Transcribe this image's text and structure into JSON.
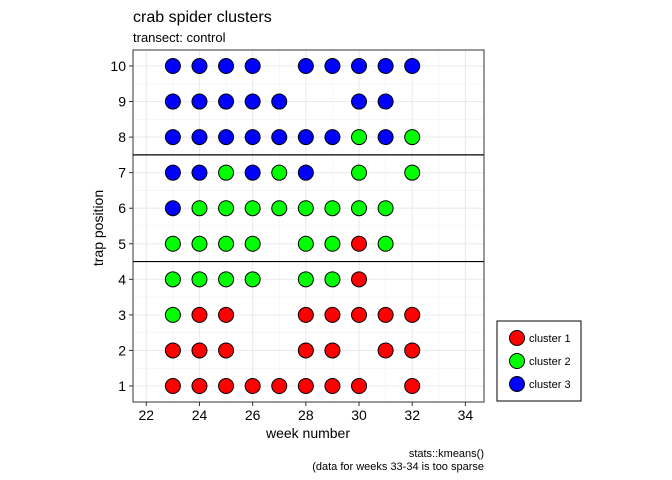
{
  "chart_data": {
    "type": "scatter",
    "title": "crab spider clusters",
    "subtitle": "transect: control",
    "xlabel": "week number",
    "ylabel": "trap position",
    "xlim": [
      21.5,
      34.7
    ],
    "ylim": [
      0.55,
      10.45
    ],
    "xticks": [
      22,
      24,
      26,
      28,
      30,
      32,
      34
    ],
    "yticks": [
      1,
      2,
      3,
      4,
      5,
      6,
      7,
      8,
      9,
      10
    ],
    "grid": true,
    "hlines": [
      4.5,
      7.5
    ],
    "legend_position": "bottom-right",
    "caption_lines": [
      "stats::kmeans()",
      "(data for weeks 33-34 is too sparse"
    ],
    "series": [
      {
        "name": "cluster 1",
        "color": "#ff0000",
        "points": [
          [
            23,
            1
          ],
          [
            24,
            1
          ],
          [
            25,
            1
          ],
          [
            26,
            1
          ],
          [
            27,
            1
          ],
          [
            28,
            1
          ],
          [
            29,
            1
          ],
          [
            30,
            1
          ],
          [
            32,
            1
          ],
          [
            23,
            2
          ],
          [
            24,
            2
          ],
          [
            25,
            2
          ],
          [
            28,
            2
          ],
          [
            29,
            2
          ],
          [
            31,
            2
          ],
          [
            32,
            2
          ],
          [
            24,
            3
          ],
          [
            25,
            3
          ],
          [
            28,
            3
          ],
          [
            29,
            3
          ],
          [
            30,
            3
          ],
          [
            31,
            3
          ],
          [
            32,
            3
          ],
          [
            30,
            4
          ],
          [
            30,
            5
          ]
        ]
      },
      {
        "name": "cluster 2",
        "color": "#00ff00",
        "points": [
          [
            23,
            3
          ],
          [
            23,
            4
          ],
          [
            24,
            4
          ],
          [
            25,
            4
          ],
          [
            26,
            4
          ],
          [
            28,
            4
          ],
          [
            29,
            4
          ],
          [
            23,
            5
          ],
          [
            24,
            5
          ],
          [
            25,
            5
          ],
          [
            26,
            5
          ],
          [
            28,
            5
          ],
          [
            29,
            5
          ],
          [
            31,
            5
          ],
          [
            24,
            6
          ],
          [
            25,
            6
          ],
          [
            26,
            6
          ],
          [
            27,
            6
          ],
          [
            28,
            6
          ],
          [
            29,
            6
          ],
          [
            30,
            6
          ],
          [
            31,
            6
          ],
          [
            25,
            7
          ],
          [
            27,
            7
          ],
          [
            30,
            7
          ],
          [
            32,
            7
          ],
          [
            30,
            8
          ],
          [
            32,
            8
          ]
        ]
      },
      {
        "name": "cluster 3",
        "color": "#0000ff",
        "points": [
          [
            23,
            6
          ],
          [
            23,
            7
          ],
          [
            24,
            7
          ],
          [
            26,
            7
          ],
          [
            28,
            7
          ],
          [
            23,
            8
          ],
          [
            24,
            8
          ],
          [
            25,
            8
          ],
          [
            26,
            8
          ],
          [
            27,
            8
          ],
          [
            28,
            8
          ],
          [
            29,
            8
          ],
          [
            31,
            8
          ],
          [
            23,
            9
          ],
          [
            24,
            9
          ],
          [
            25,
            9
          ],
          [
            26,
            9
          ],
          [
            27,
            9
          ],
          [
            30,
            9
          ],
          [
            31,
            9
          ],
          [
            23,
            10
          ],
          [
            24,
            10
          ],
          [
            25,
            10
          ],
          [
            26,
            10
          ],
          [
            28,
            10
          ],
          [
            29,
            10
          ],
          [
            30,
            10
          ],
          [
            31,
            10
          ],
          [
            32,
            10
          ]
        ]
      }
    ]
  }
}
